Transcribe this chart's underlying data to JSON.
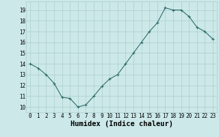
{
  "x": [
    0,
    1,
    2,
    3,
    4,
    5,
    6,
    7,
    8,
    9,
    10,
    11,
    12,
    13,
    14,
    15,
    16,
    17,
    18,
    19,
    20,
    21,
    22,
    23
  ],
  "y": [
    14.0,
    13.6,
    13.0,
    12.2,
    10.9,
    10.8,
    10.0,
    10.2,
    11.0,
    11.9,
    12.6,
    13.0,
    14.0,
    15.0,
    16.0,
    17.0,
    17.8,
    19.2,
    19.0,
    19.0,
    18.4,
    17.4,
    17.0,
    16.3
  ],
  "xlabel": "Humidex (Indice chaleur)",
  "ylabel": "",
  "xlim": [
    -0.5,
    23.5
  ],
  "ylim": [
    9.5,
    19.8
  ],
  "yticks": [
    10,
    11,
    12,
    13,
    14,
    15,
    16,
    17,
    18,
    19
  ],
  "xticks": [
    0,
    1,
    2,
    3,
    4,
    5,
    6,
    7,
    8,
    9,
    10,
    11,
    12,
    13,
    14,
    15,
    16,
    17,
    18,
    19,
    20,
    21,
    22,
    23
  ],
  "line_color": "#2d6b6b",
  "marker": "+",
  "bg_color": "#cce8e8",
  "grid_color": "#aacece",
  "tick_label_fontsize": 5.5,
  "xlabel_fontsize": 7.5
}
